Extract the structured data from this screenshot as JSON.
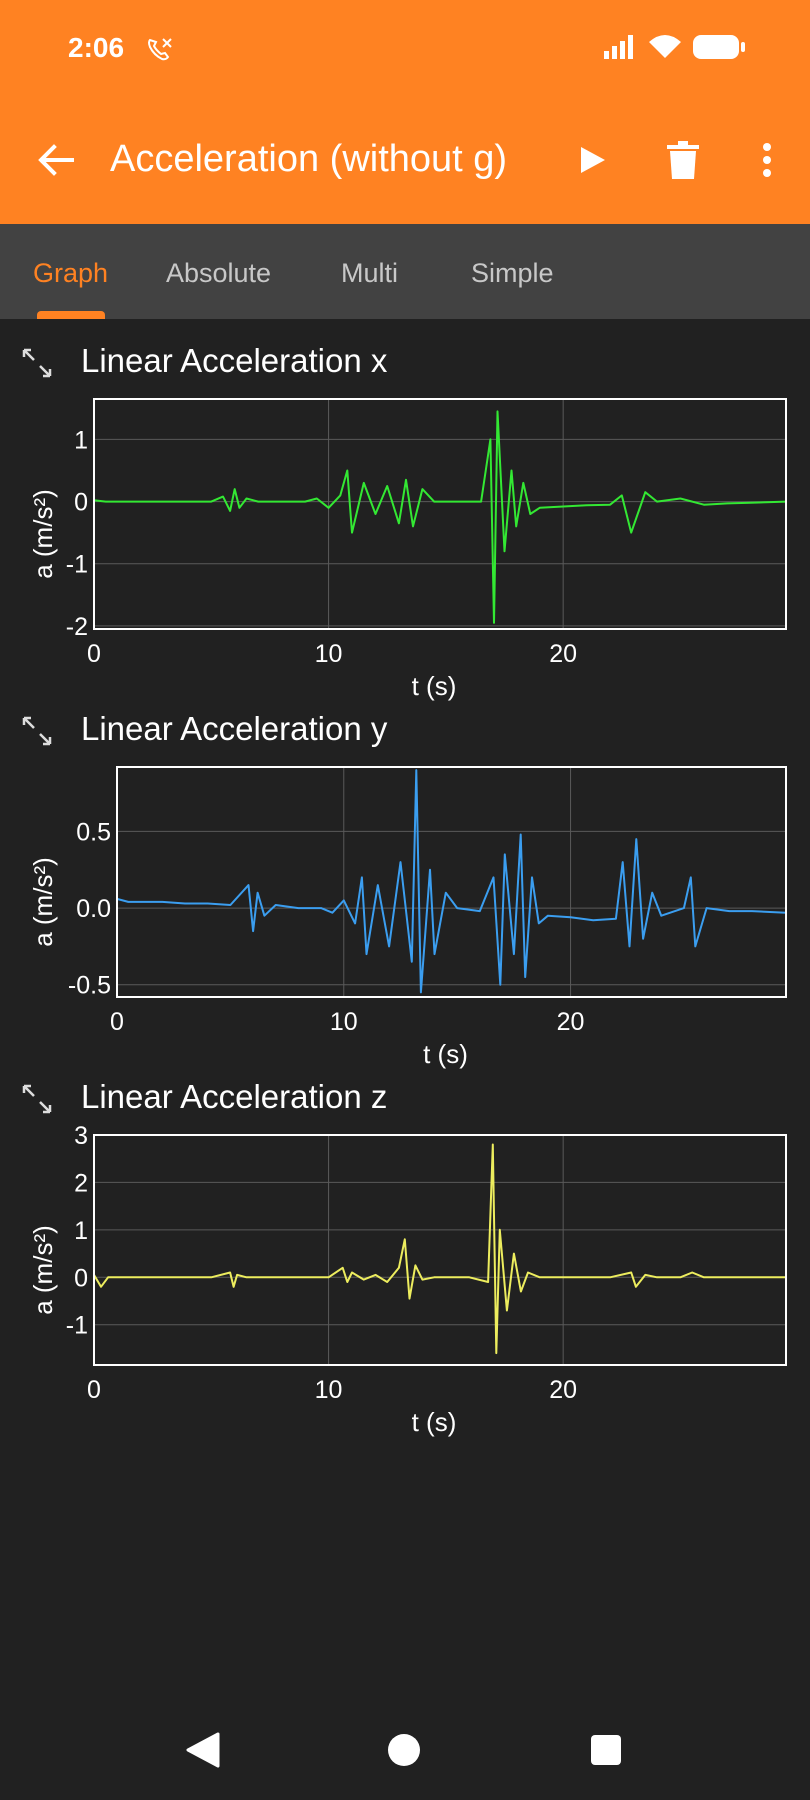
{
  "status_bar": {
    "time": "2:06"
  },
  "toolbar": {
    "title": "Acceleration (without g)"
  },
  "tabs": [
    {
      "label": "Graph",
      "active": true
    },
    {
      "label": "Absolute",
      "active": false
    },
    {
      "label": "Multi",
      "active": false
    },
    {
      "label": "Simple",
      "active": false
    }
  ],
  "graphs": [
    {
      "title": "Linear Acceleration x"
    },
    {
      "title": "Linear Acceleration y"
    },
    {
      "title": "Linear Acceleration z"
    }
  ],
  "colors": {
    "accent": "#ff8222",
    "background": "#212121",
    "tab_bar": "#424242",
    "series_x": "#33e833",
    "series_y": "#3b9ef0",
    "series_z": "#eded5e"
  },
  "chart_data": [
    {
      "type": "line",
      "title": "Linear Acceleration x",
      "xlabel": "t (s)",
      "ylabel": "a (m/s²)",
      "xlim": [
        0,
        29.5
      ],
      "ylim": [
        -2.05,
        1.65
      ],
      "xticks": [
        0,
        10,
        20
      ],
      "yticks": [
        -2,
        -1,
        0,
        1
      ],
      "ytick_labels": [
        "-2",
        "-1",
        "0",
        "1"
      ],
      "grid": true,
      "series": [
        {
          "color": "#33e833",
          "x": [
            0,
            0.5,
            1,
            2,
            3,
            4,
            5,
            5.5,
            5.8,
            6.0,
            6.2,
            6.5,
            7,
            8,
            9,
            9.5,
            10,
            10.5,
            10.8,
            11,
            11.5,
            12,
            12.5,
            13,
            13.3,
            13.6,
            14,
            14.5,
            15,
            16,
            16.5,
            16.9,
            17.05,
            17.2,
            17.5,
            17.8,
            18,
            18.3,
            18.6,
            19,
            20,
            21,
            22,
            22.5,
            22.9,
            23.5,
            24,
            25,
            26,
            27,
            28,
            29.5
          ],
          "values": [
            0.02,
            0.0,
            0.0,
            0.0,
            0.0,
            0.0,
            0.0,
            0.08,
            -0.15,
            0.2,
            -0.1,
            0.05,
            0.0,
            0.0,
            0.0,
            0.05,
            -0.1,
            0.1,
            0.5,
            -0.5,
            0.3,
            -0.2,
            0.25,
            -0.35,
            0.35,
            -0.4,
            0.2,
            0.0,
            0.0,
            0.0,
            0.0,
            1.0,
            -1.95,
            1.45,
            -0.8,
            0.5,
            -0.4,
            0.3,
            -0.2,
            -0.1,
            -0.08,
            -0.06,
            -0.05,
            0.1,
            -0.5,
            0.15,
            0.0,
            0.05,
            -0.05,
            -0.03,
            -0.02,
            0.0
          ]
        }
      ]
    },
    {
      "type": "line",
      "title": "Linear Acceleration y",
      "xlabel": "t (s)",
      "ylabel": "a (m/s²)",
      "xlim": [
        0,
        29.5
      ],
      "ylim": [
        -0.58,
        0.92
      ],
      "xticks": [
        0,
        10,
        20
      ],
      "yticks": [
        -0.5,
        0.0,
        0.5
      ],
      "ytick_labels": [
        "-0.5",
        "0.0",
        "0.5"
      ],
      "grid": true,
      "series": [
        {
          "color": "#3b9ef0",
          "x": [
            0,
            0.5,
            1,
            2,
            3,
            4,
            5,
            5.8,
            6.0,
            6.2,
            6.5,
            7,
            8,
            9,
            9.5,
            10,
            10.5,
            10.8,
            11,
            11.5,
            12,
            12.5,
            13.0,
            13.2,
            13.4,
            13.8,
            14,
            14.5,
            15,
            16,
            16.6,
            16.9,
            17.1,
            17.5,
            17.8,
            18.0,
            18.3,
            18.6,
            19,
            20,
            21,
            22,
            22.3,
            22.6,
            22.9,
            23.2,
            23.6,
            24,
            25,
            25.3,
            25.5,
            26,
            27,
            28,
            29.5
          ],
          "values": [
            0.06,
            0.04,
            0.04,
            0.04,
            0.03,
            0.03,
            0.02,
            0.15,
            -0.15,
            0.1,
            -0.05,
            0.02,
            0.0,
            0.0,
            -0.03,
            0.05,
            -0.1,
            0.2,
            -0.3,
            0.15,
            -0.25,
            0.3,
            -0.35,
            0.9,
            -0.55,
            0.25,
            -0.3,
            0.1,
            0.0,
            -0.02,
            0.2,
            -0.5,
            0.35,
            -0.3,
            0.48,
            -0.45,
            0.2,
            -0.1,
            -0.05,
            -0.06,
            -0.08,
            -0.07,
            0.3,
            -0.25,
            0.45,
            -0.2,
            0.1,
            -0.05,
            0.0,
            0.2,
            -0.25,
            0.0,
            -0.02,
            -0.02,
            -0.03
          ]
        }
      ]
    },
    {
      "type": "line",
      "title": "Linear Acceleration z",
      "xlabel": "t (s)",
      "ylabel": "a (m/s²)",
      "xlim": [
        0,
        29.5
      ],
      "ylim": [
        -1.85,
        3.0
      ],
      "xticks": [
        0,
        10,
        20
      ],
      "yticks": [
        -1,
        0,
        1,
        2,
        3
      ],
      "ytick_labels": [
        "-1",
        "0",
        "1",
        "2",
        "3"
      ],
      "grid": true,
      "series": [
        {
          "color": "#eded5e",
          "x": [
            0,
            0.3,
            0.6,
            1,
            2,
            3,
            4,
            5,
            5.8,
            5.95,
            6.1,
            6.5,
            7,
            8,
            9,
            10,
            10.6,
            10.8,
            11,
            11.5,
            12,
            12.5,
            13.0,
            13.25,
            13.45,
            13.7,
            14,
            14.5,
            15,
            16,
            16.8,
            17.0,
            17.15,
            17.3,
            17.6,
            17.9,
            18.2,
            18.5,
            19,
            20,
            21,
            22,
            22.9,
            23.1,
            23.5,
            24,
            25,
            25.5,
            26,
            27,
            28,
            29.5
          ],
          "values": [
            0.05,
            -0.2,
            0.0,
            0.0,
            0.0,
            0.0,
            0.0,
            0.0,
            0.1,
            -0.2,
            0.05,
            0.0,
            0.0,
            0.0,
            0.0,
            0.0,
            0.2,
            -0.1,
            0.1,
            -0.05,
            0.05,
            -0.1,
            0.2,
            0.8,
            -0.45,
            0.25,
            -0.05,
            0.0,
            0.0,
            0.0,
            -0.1,
            2.8,
            -1.6,
            1.0,
            -0.7,
            0.5,
            -0.3,
            0.1,
            0.0,
            0.0,
            0.0,
            0.0,
            0.1,
            -0.2,
            0.05,
            0.0,
            0.0,
            0.1,
            0.0,
            0.0,
            0.0,
            0.0
          ]
        }
      ]
    }
  ]
}
